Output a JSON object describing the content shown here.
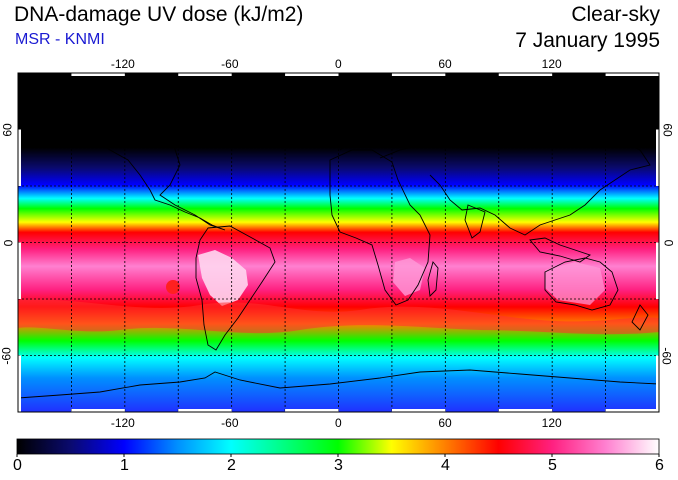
{
  "header": {
    "title": "DNA-damage UV dose (kJ/m2)",
    "source": "MSR - KNMI",
    "condition": "Clear-sky",
    "date": "7 January 1995"
  },
  "map": {
    "projection": "equirectangular",
    "lon_range": [
      -180,
      180
    ],
    "lat_range": [
      -90,
      90
    ],
    "lon_ticks": [
      "-120",
      "-60",
      "0",
      "60",
      "120"
    ],
    "lat_ticks": [
      "60",
      "0",
      "-60"
    ],
    "grid_step_deg": 30,
    "field_description_color_stops_by_latitude": "dark north, rising toward southern summer"
  },
  "colorbar": {
    "labels": [
      "0",
      "1",
      "2",
      "3",
      "4",
      "5",
      "6"
    ],
    "min": 0,
    "max": 6,
    "stops": [
      {
        "value": 0,
        "color": "#000000"
      },
      {
        "value": 0.5,
        "color": "#0a0a6e"
      },
      {
        "value": 1,
        "color": "#0000ff"
      },
      {
        "value": 1.5,
        "color": "#0090ff"
      },
      {
        "value": 2,
        "color": "#00ffff"
      },
      {
        "value": 2.5,
        "color": "#00ff80"
      },
      {
        "value": 3,
        "color": "#00ff00"
      },
      {
        "value": 3.5,
        "color": "#ffff00"
      },
      {
        "value": 4,
        "color": "#ff8000"
      },
      {
        "value": 4.5,
        "color": "#ff0000"
      },
      {
        "value": 5,
        "color": "#ff2080"
      },
      {
        "value": 5.5,
        "color": "#ff80d0"
      },
      {
        "value": 6,
        "color": "#ffffff"
      }
    ]
  }
}
